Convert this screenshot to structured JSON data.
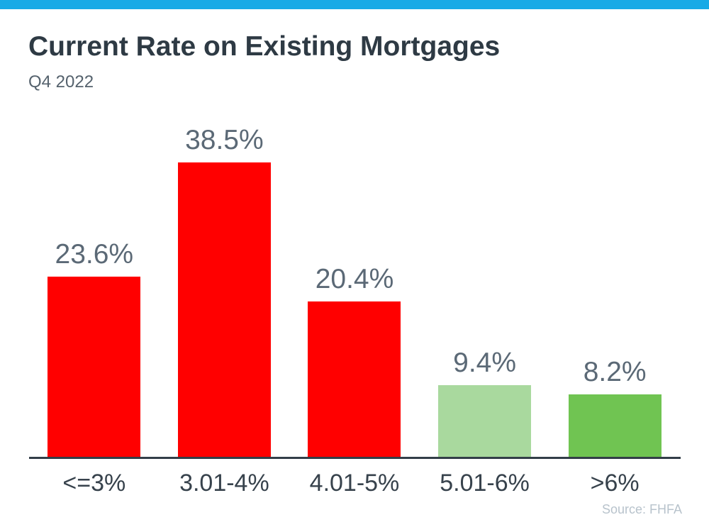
{
  "page": {
    "title": "Current Rate on Existing Mortgages",
    "subtitle": "Q4 2022",
    "source": "Source: FHFA"
  },
  "theme": {
    "accent_bar_color": "#18aae6",
    "title_color": "#2e3a44",
    "subtitle_color": "#55626d",
    "value_label_color": "#5b6976",
    "axis_label_color": "#37424c",
    "axis_line_color": "#333e48",
    "source_color": "#b8c3cc",
    "background": "#ffffff",
    "red": "#ff0000",
    "light_green": "#a9d99e",
    "green": "#70c452"
  },
  "chart_data": {
    "type": "bar",
    "title": "Current Rate on Existing Mortgages",
    "subtitle": "Q4 2022",
    "categories": [
      "<=3%",
      "3.01-4%",
      "4.01-5%",
      "5.01-6%",
      ">6%"
    ],
    "values": [
      23.6,
      38.5,
      20.4,
      9.4,
      8.2
    ],
    "value_labels": [
      "23.6%",
      "38.5%",
      "20.4%",
      "9.4%",
      "8.2%"
    ],
    "bar_colors": [
      "#ff0000",
      "#ff0000",
      "#ff0000",
      "#a9d99e",
      "#70c452"
    ],
    "xlabel": "",
    "ylabel": "",
    "ylim": [
      0,
      45
    ],
    "grid": false,
    "legend": null,
    "data_labels": true,
    "source": "Source: FHFA"
  }
}
